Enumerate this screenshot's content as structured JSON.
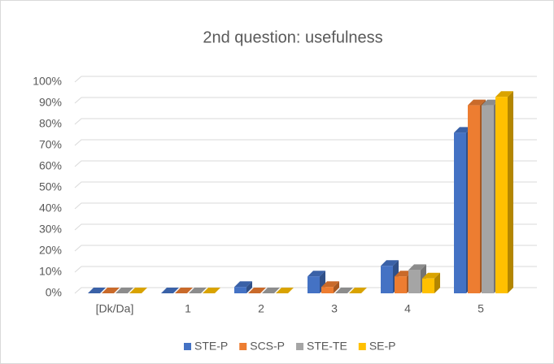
{
  "chart_data": {
    "type": "bar",
    "title": "2nd question: usefulness",
    "categories": [
      "[Dk/Da]",
      "1",
      "2",
      "3",
      "4",
      "5"
    ],
    "series": [
      {
        "name": "STE-P",
        "color": "#4472c4",
        "values": [
          0,
          0,
          3,
          8,
          13,
          76
        ]
      },
      {
        "name": "SCS-P",
        "color": "#ed7d31",
        "values": [
          0,
          0,
          0,
          3,
          8,
          89
        ]
      },
      {
        "name": "STE-TE",
        "color": "#a5a5a5",
        "values": [
          0,
          0,
          0,
          0,
          11,
          89
        ]
      },
      {
        "name": "SE-P",
        "color": "#ffc000",
        "values": [
          0,
          0,
          0,
          0,
          7,
          93
        ]
      }
    ],
    "ylim": [
      0,
      100
    ],
    "yticks": [
      {
        "value": 0,
        "label": "0%"
      },
      {
        "value": 10,
        "label": "10%"
      },
      {
        "value": 20,
        "label": "20%"
      },
      {
        "value": 30,
        "label": "30%"
      },
      {
        "value": 40,
        "label": "40%"
      },
      {
        "value": 50,
        "label": "50%"
      },
      {
        "value": 60,
        "label": "60%"
      },
      {
        "value": 70,
        "label": "70%"
      },
      {
        "value": 80,
        "label": "80%"
      },
      {
        "value": 90,
        "label": "90%"
      },
      {
        "value": 100,
        "label": "100%"
      }
    ],
    "grid": true,
    "legend": "bottom"
  }
}
